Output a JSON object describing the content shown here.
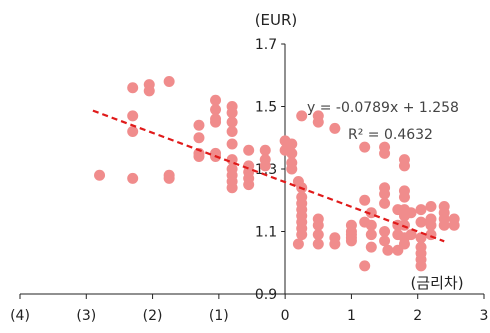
{
  "chart_data": {
    "type": "scatter",
    "title": "",
    "y_unit_label": "(EUR)",
    "x_unit_label": "(금리차)",
    "xlim": [
      -4,
      3
    ],
    "ylim": [
      0.9,
      1.7
    ],
    "x_ticks": [
      {
        "value": -4,
        "label": "(4)"
      },
      {
        "value": -3,
        "label": "(3)"
      },
      {
        "value": -2,
        "label": "(2)"
      },
      {
        "value": -1,
        "label": "(1)"
      },
      {
        "value": 0,
        "label": "0"
      },
      {
        "value": 1,
        "label": "1"
      },
      {
        "value": 2,
        "label": "2"
      },
      {
        "value": 3,
        "label": "3"
      }
    ],
    "y_ticks": [
      {
        "value": 0.9,
        "label": "0.9"
      },
      {
        "value": 1.1,
        "label": "1.1"
      },
      {
        "value": 1.3,
        "label": "1.3"
      },
      {
        "value": 1.5,
        "label": "1.5"
      },
      {
        "value": 1.7,
        "label": "1.7"
      }
    ],
    "grid": false,
    "legend": "none",
    "series": [
      {
        "points": [
          [
            -2.8,
            1.28
          ],
          [
            -2.3,
            1.56
          ],
          [
            -2.3,
            1.47
          ],
          [
            -2.3,
            1.42
          ],
          [
            -2.3,
            1.27
          ],
          [
            -2.05,
            1.57
          ],
          [
            -2.05,
            1.55
          ],
          [
            -1.75,
            1.58
          ],
          [
            -1.75,
            1.28
          ],
          [
            -1.75,
            1.27
          ],
          [
            -1.3,
            1.44
          ],
          [
            -1.3,
            1.4
          ],
          [
            -1.3,
            1.35
          ],
          [
            -1.3,
            1.34
          ],
          [
            -1.05,
            1.52
          ],
          [
            -1.05,
            1.49
          ],
          [
            -1.05,
            1.46
          ],
          [
            -1.05,
            1.45
          ],
          [
            -1.05,
            1.35
          ],
          [
            -1.05,
            1.34
          ],
          [
            -0.8,
            1.5
          ],
          [
            -0.8,
            1.48
          ],
          [
            -0.8,
            1.45
          ],
          [
            -0.8,
            1.42
          ],
          [
            -0.8,
            1.38
          ],
          [
            -0.8,
            1.33
          ],
          [
            -0.8,
            1.3
          ],
          [
            -0.8,
            1.28
          ],
          [
            -0.8,
            1.26
          ],
          [
            -0.8,
            1.24
          ],
          [
            -0.55,
            1.36
          ],
          [
            -0.55,
            1.31
          ],
          [
            -0.55,
            1.29
          ],
          [
            -0.55,
            1.27
          ],
          [
            -0.55,
            1.25
          ],
          [
            -0.3,
            1.36
          ],
          [
            -0.3,
            1.33
          ],
          [
            -0.3,
            1.31
          ],
          [
            0.0,
            1.39
          ],
          [
            0.0,
            1.36
          ],
          [
            0.1,
            1.38
          ],
          [
            0.1,
            1.35
          ],
          [
            0.1,
            1.32
          ],
          [
            0.1,
            1.3
          ],
          [
            0.2,
            1.26
          ],
          [
            0.2,
            1.06
          ],
          [
            0.25,
            1.47
          ],
          [
            0.25,
            1.24
          ],
          [
            0.25,
            1.21
          ],
          [
            0.25,
            1.19
          ],
          [
            0.25,
            1.17
          ],
          [
            0.25,
            1.15
          ],
          [
            0.25,
            1.13
          ],
          [
            0.25,
            1.11
          ],
          [
            0.25,
            1.09
          ],
          [
            0.5,
            1.47
          ],
          [
            0.5,
            1.45
          ],
          [
            0.5,
            1.14
          ],
          [
            0.5,
            1.12
          ],
          [
            0.5,
            1.09
          ],
          [
            0.5,
            1.06
          ],
          [
            0.75,
            1.43
          ],
          [
            0.75,
            1.08
          ],
          [
            0.75,
            1.06
          ],
          [
            1.0,
            1.12
          ],
          [
            1.0,
            1.1
          ],
          [
            1.0,
            1.09
          ],
          [
            1.0,
            1.08
          ],
          [
            1.0,
            1.07
          ],
          [
            1.2,
            1.37
          ],
          [
            1.2,
            1.2
          ],
          [
            1.2,
            1.13
          ],
          [
            1.2,
            0.99
          ],
          [
            1.3,
            1.16
          ],
          [
            1.3,
            1.12
          ],
          [
            1.3,
            1.09
          ],
          [
            1.3,
            1.05
          ],
          [
            1.5,
            1.37
          ],
          [
            1.5,
            1.35
          ],
          [
            1.5,
            1.24
          ],
          [
            1.5,
            1.22
          ],
          [
            1.5,
            1.19
          ],
          [
            1.5,
            1.1
          ],
          [
            1.5,
            1.07
          ],
          [
            1.55,
            1.04
          ],
          [
            1.7,
            1.17
          ],
          [
            1.7,
            1.12
          ],
          [
            1.7,
            1.09
          ],
          [
            1.7,
            1.04
          ],
          [
            1.8,
            1.33
          ],
          [
            1.8,
            1.31
          ],
          [
            1.8,
            1.23
          ],
          [
            1.8,
            1.21
          ],
          [
            1.8,
            1.17
          ],
          [
            1.8,
            1.15
          ],
          [
            1.8,
            1.12
          ],
          [
            1.8,
            1.08
          ],
          [
            1.8,
            1.06
          ],
          [
            1.9,
            1.16
          ],
          [
            1.9,
            1.09
          ],
          [
            2.05,
            1.17
          ],
          [
            2.05,
            1.13
          ],
          [
            2.05,
            1.08
          ],
          [
            2.05,
            1.05
          ],
          [
            2.05,
            1.03
          ],
          [
            2.05,
            1.01
          ],
          [
            2.05,
            0.99
          ],
          [
            2.2,
            1.18
          ],
          [
            2.2,
            1.14
          ],
          [
            2.2,
            1.12
          ],
          [
            2.2,
            1.09
          ],
          [
            2.4,
            1.18
          ],
          [
            2.4,
            1.16
          ],
          [
            2.4,
            1.14
          ],
          [
            2.4,
            1.12
          ],
          [
            2.55,
            1.14
          ],
          [
            2.55,
            1.12
          ]
        ],
        "color": "#f08c8c"
      }
    ],
    "trendline": {
      "slope": -0.0789,
      "intercept": 1.258,
      "x_range": [
        -2.9,
        2.4
      ],
      "color": "#e01a1a",
      "style": "dashed",
      "equation_text": "y = -0.0789x + 1.258",
      "r2_text": "R² = 0.4632"
    }
  }
}
